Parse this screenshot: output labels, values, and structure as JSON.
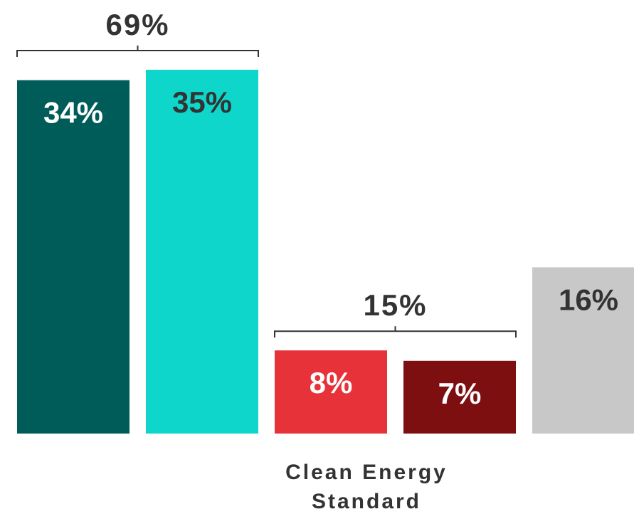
{
  "chart_data": {
    "type": "bar",
    "ylim": [
      0,
      40
    ],
    "grid": false,
    "legend": "none",
    "series": [
      {
        "label": "34%",
        "value": 34,
        "color": "#005c59",
        "label_color": "#ffffff"
      },
      {
        "label": "35%",
        "value": 35,
        "color": "#0fd6cb",
        "label_color": "#333333"
      },
      {
        "label": "8%",
        "value": 8,
        "color": "#e8323a",
        "label_color": "#ffffff"
      },
      {
        "label": "7%",
        "value": 7,
        "color": "#7e0f11",
        "label_color": "#ffffff"
      },
      {
        "label": "16%",
        "value": 16,
        "color": "#c8c8c8",
        "label_color": "#333333"
      }
    ],
    "group_totals": [
      {
        "label": "69%",
        "bars": [
          0,
          1
        ]
      },
      {
        "label": "15%",
        "bars": [
          2,
          3
        ]
      }
    ],
    "category_label": [
      "Clean Energy",
      "Standard"
    ]
  }
}
